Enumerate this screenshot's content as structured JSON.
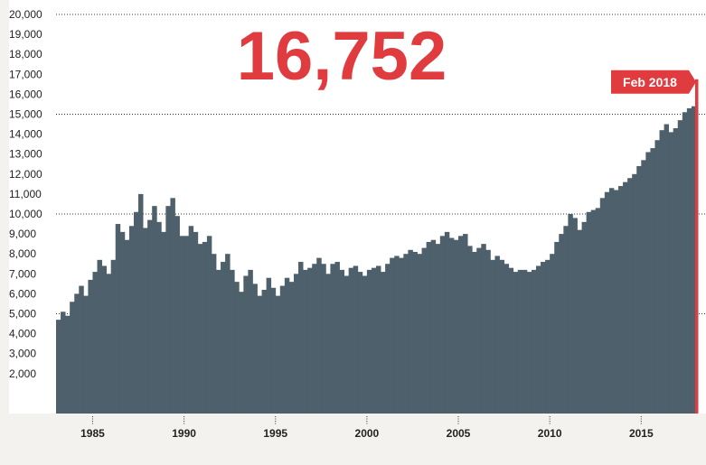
{
  "chart_data": {
    "type": "area",
    "headline_value": "16,752",
    "callout_label": "Feb 2018",
    "ylim": [
      0,
      20000
    ],
    "yticks": [
      2000,
      3000,
      4000,
      5000,
      6000,
      7000,
      8000,
      9000,
      10000,
      11000,
      12000,
      13000,
      14000,
      15000,
      16000,
      17000,
      18000,
      19000,
      20000
    ],
    "ytick_labels": [
      "2,000",
      "3,000",
      "4,000",
      "5,000",
      "6,000",
      "7,000",
      "8,000",
      "9,000",
      "10,000",
      "11,000",
      "12,000",
      "13,000",
      "14,000",
      "15,000",
      "16,000",
      "17,000",
      "18,000",
      "19,000",
      "20,000"
    ],
    "dotted_gridlines": [
      5000,
      10000,
      15000,
      20000
    ],
    "xlim": [
      1983.0,
      2018.1
    ],
    "xticks": [
      1985,
      1990,
      1995,
      2000,
      2005,
      2010,
      2015
    ],
    "xtick_labels": [
      "1985",
      "1990",
      "1995",
      "2000",
      "2005",
      "2010",
      "2015"
    ],
    "colors": {
      "area": "#4d606b",
      "accent": "#e03b3f",
      "background": "#f3f2ee",
      "text": "#222222"
    },
    "series": [
      {
        "x": [
          1983.0,
          1983.25,
          1983.5,
          1983.75,
          1984.0,
          1984.25,
          1984.5,
          1984.75,
          1985.0,
          1985.25,
          1985.5,
          1985.75,
          1986.0,
          1986.25,
          1986.5,
          1986.75,
          1987.0,
          1987.25,
          1987.5,
          1987.75,
          1988.0,
          1988.25,
          1988.5,
          1988.75,
          1989.0,
          1989.25,
          1989.5,
          1989.75,
          1990.0,
          1990.25,
          1990.5,
          1990.75,
          1991.0,
          1991.25,
          1991.5,
          1991.75,
          1992.0,
          1992.25,
          1992.5,
          1992.75,
          1993.0,
          1993.25,
          1993.5,
          1993.75,
          1994.0,
          1994.25,
          1994.5,
          1994.75,
          1995.0,
          1995.25,
          1995.5,
          1995.75,
          1996.0,
          1996.25,
          1996.5,
          1996.75,
          1997.0,
          1997.25,
          1997.5,
          1997.75,
          1998.0,
          1998.25,
          1998.5,
          1998.75,
          1999.0,
          1999.25,
          1999.5,
          1999.75,
          2000.0,
          2000.25,
          2000.5,
          2000.75,
          2001.0,
          2001.25,
          2001.5,
          2001.75,
          2002.0,
          2002.25,
          2002.5,
          2002.75,
          2003.0,
          2003.25,
          2003.5,
          2003.75,
          2004.0,
          2004.25,
          2004.5,
          2004.75,
          2005.0,
          2005.25,
          2005.5,
          2005.75,
          2006.0,
          2006.25,
          2006.5,
          2006.75,
          2007.0,
          2007.25,
          2007.5,
          2007.75,
          2008.0,
          2008.25,
          2008.5,
          2008.75,
          2009.0,
          2009.25,
          2009.5,
          2009.75,
          2010.0,
          2010.25,
          2010.5,
          2010.75,
          2011.0,
          2011.25,
          2011.5,
          2011.75,
          2012.0,
          2012.25,
          2012.5,
          2012.75,
          2013.0,
          2013.25,
          2013.5,
          2013.75,
          2014.0,
          2014.25,
          2014.5,
          2014.75,
          2015.0,
          2015.25,
          2015.5,
          2015.75,
          2016.0,
          2016.25,
          2016.5,
          2016.75,
          2017.0,
          2017.25,
          2017.5,
          2017.75,
          2018.0,
          2018.1
        ],
        "y": [
          4700,
          5100,
          4900,
          5600,
          6000,
          6400,
          5900,
          6700,
          7100,
          7700,
          7400,
          7000,
          7700,
          9500,
          9100,
          8700,
          9400,
          10100,
          11000,
          9300,
          9700,
          10400,
          9600,
          9100,
          10400,
          10800,
          9900,
          8900,
          8900,
          9400,
          9100,
          8500,
          8600,
          8900,
          8000,
          7200,
          7600,
          8000,
          7200,
          6600,
          6100,
          6900,
          7200,
          6500,
          5900,
          6200,
          6800,
          6300,
          5900,
          6400,
          6800,
          6600,
          7000,
          7600,
          7200,
          7300,
          7500,
          7800,
          7500,
          7000,
          7500,
          7600,
          7200,
          6900,
          7300,
          7400,
          7100,
          6900,
          7200,
          7300,
          7400,
          7100,
          7500,
          7800,
          7900,
          7800,
          8000,
          8200,
          8100,
          8000,
          8300,
          8600,
          8700,
          8500,
          8900,
          9100,
          8800,
          8700,
          8900,
          9000,
          8400,
          8100,
          8300,
          8500,
          8200,
          7700,
          7900,
          7700,
          7500,
          7300,
          7100,
          7200,
          7200,
          7100,
          7200,
          7400,
          7600,
          7700,
          8000,
          8600,
          9000,
          9400,
          10000,
          9800,
          9200,
          9600,
          10100,
          10200,
          10300,
          10800,
          11100,
          11300,
          11200,
          11400,
          11600,
          11800,
          12000,
          12400,
          12700,
          13100,
          13300,
          13700,
          14200,
          14500,
          14100,
          14300,
          14700,
          15100,
          15300,
          15400,
          16000,
          16752
        ]
      }
    ]
  }
}
